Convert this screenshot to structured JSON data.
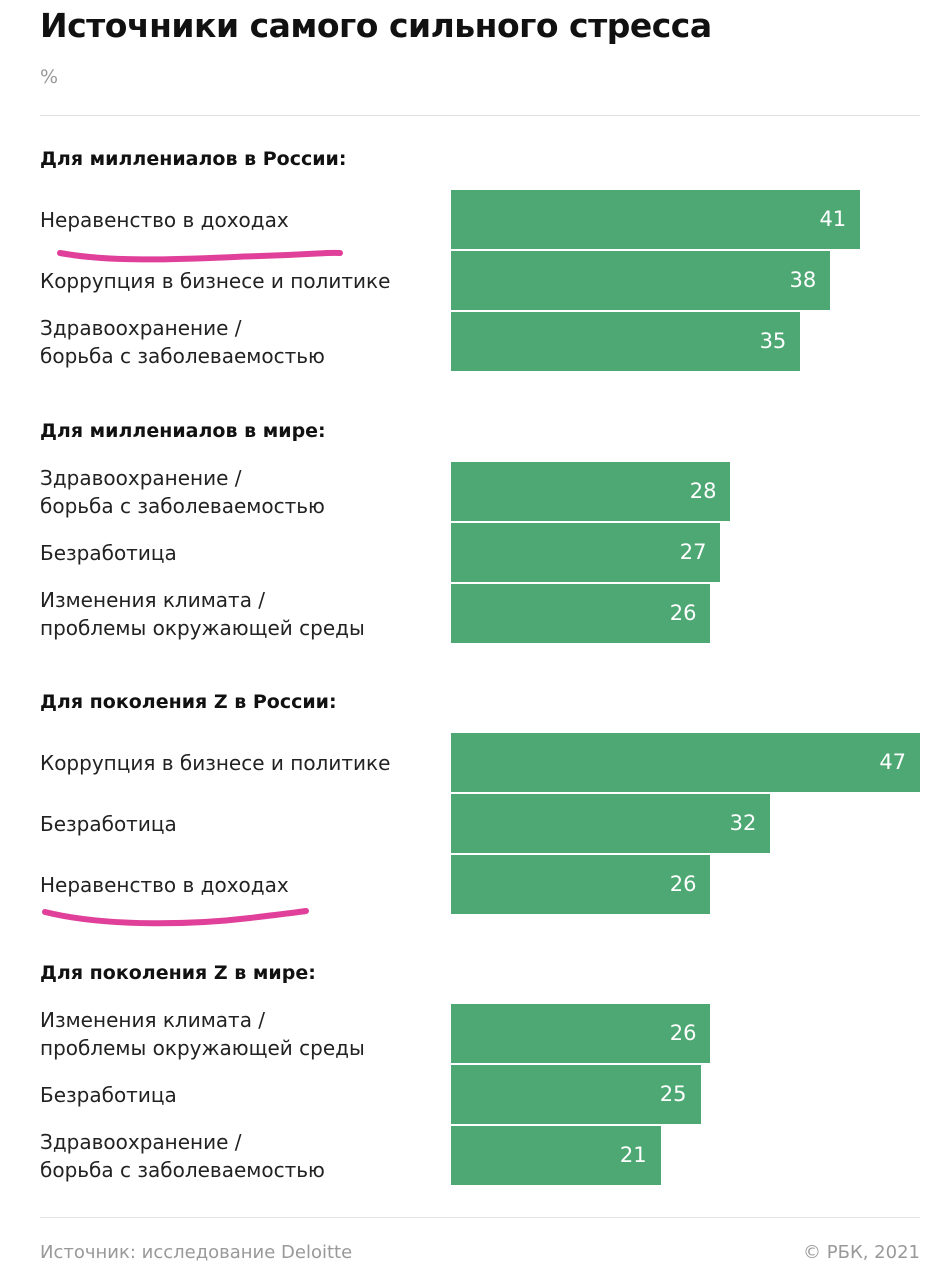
{
  "title": "Источники самого сильного стресса",
  "unit": "%",
  "chart_data": [
    {
      "type": "bar",
      "orientation": "horizontal",
      "subtitle": "Для миллениалов в России:",
      "color": "#4ea873",
      "categories": [
        "Неравенство в доходах",
        "Коррупция в бизнесе и политике",
        "Здравоохранение /\nборьба с заболеваемостью"
      ],
      "values": [
        41,
        38,
        35
      ]
    },
    {
      "type": "bar",
      "orientation": "horizontal",
      "subtitle": "Для миллениалов в мире:",
      "color": "#4ea873",
      "categories": [
        "Здравоохранение /\nборьба с заболеваемостью",
        "Безработица",
        "Изменения климата /\nпроблемы окружающей среды"
      ],
      "values": [
        28,
        27,
        26
      ]
    },
    {
      "type": "bar",
      "orientation": "horizontal",
      "subtitle": "Для поколения Z в России:",
      "color": "#4ea873",
      "categories": [
        "Коррупция в бизнесе и политике",
        "Безработица",
        "Неравенство в доходах"
      ],
      "values": [
        47,
        32,
        26
      ]
    },
    {
      "type": "bar",
      "orientation": "horizontal",
      "subtitle": "Для поколения Z в мире:",
      "color": "#4ea873",
      "categories": [
        "Изменения климата /\nпроблемы окружающей среды",
        "Безработица",
        "Здравоохранение /\nборьба с заболеваемостью"
      ],
      "values": [
        26,
        25,
        21
      ]
    }
  ],
  "source": "Источник: исследование Deloitte",
  "copyright": "© РБК, 2021"
}
